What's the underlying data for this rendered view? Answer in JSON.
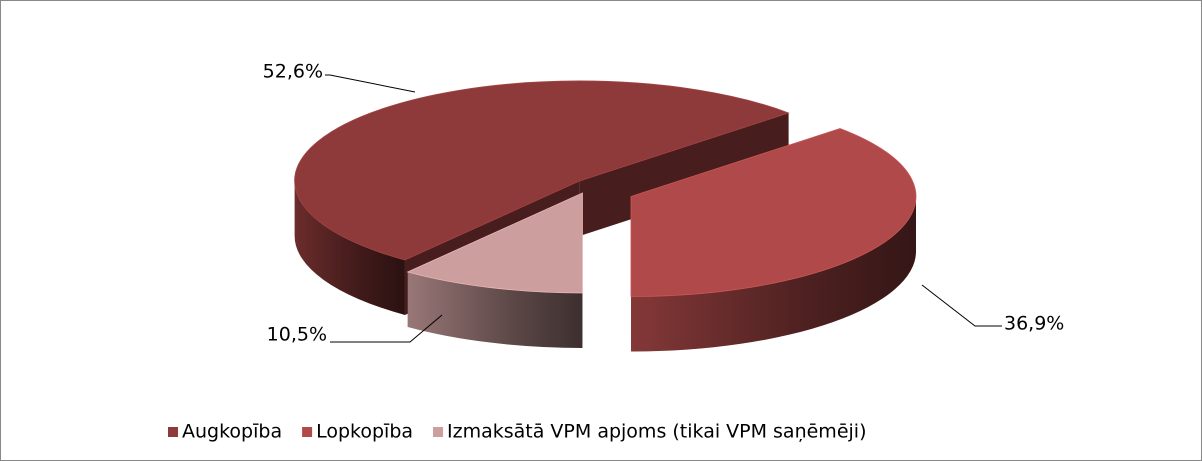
{
  "chart_data": {
    "type": "pie3d",
    "categories": [
      "Augkopība",
      "Lopkopība",
      "Izmaksātā VPM apjoms (tikai VPM saņēmēji)"
    ],
    "values": [
      52.6,
      36.9,
      10.5
    ],
    "value_labels": [
      "52,6%",
      "36,9%",
      "10,5%"
    ],
    "colors": [
      "#8e3a3a",
      "#b04a4a",
      "#cc9e9e"
    ],
    "legend": "bottom"
  }
}
